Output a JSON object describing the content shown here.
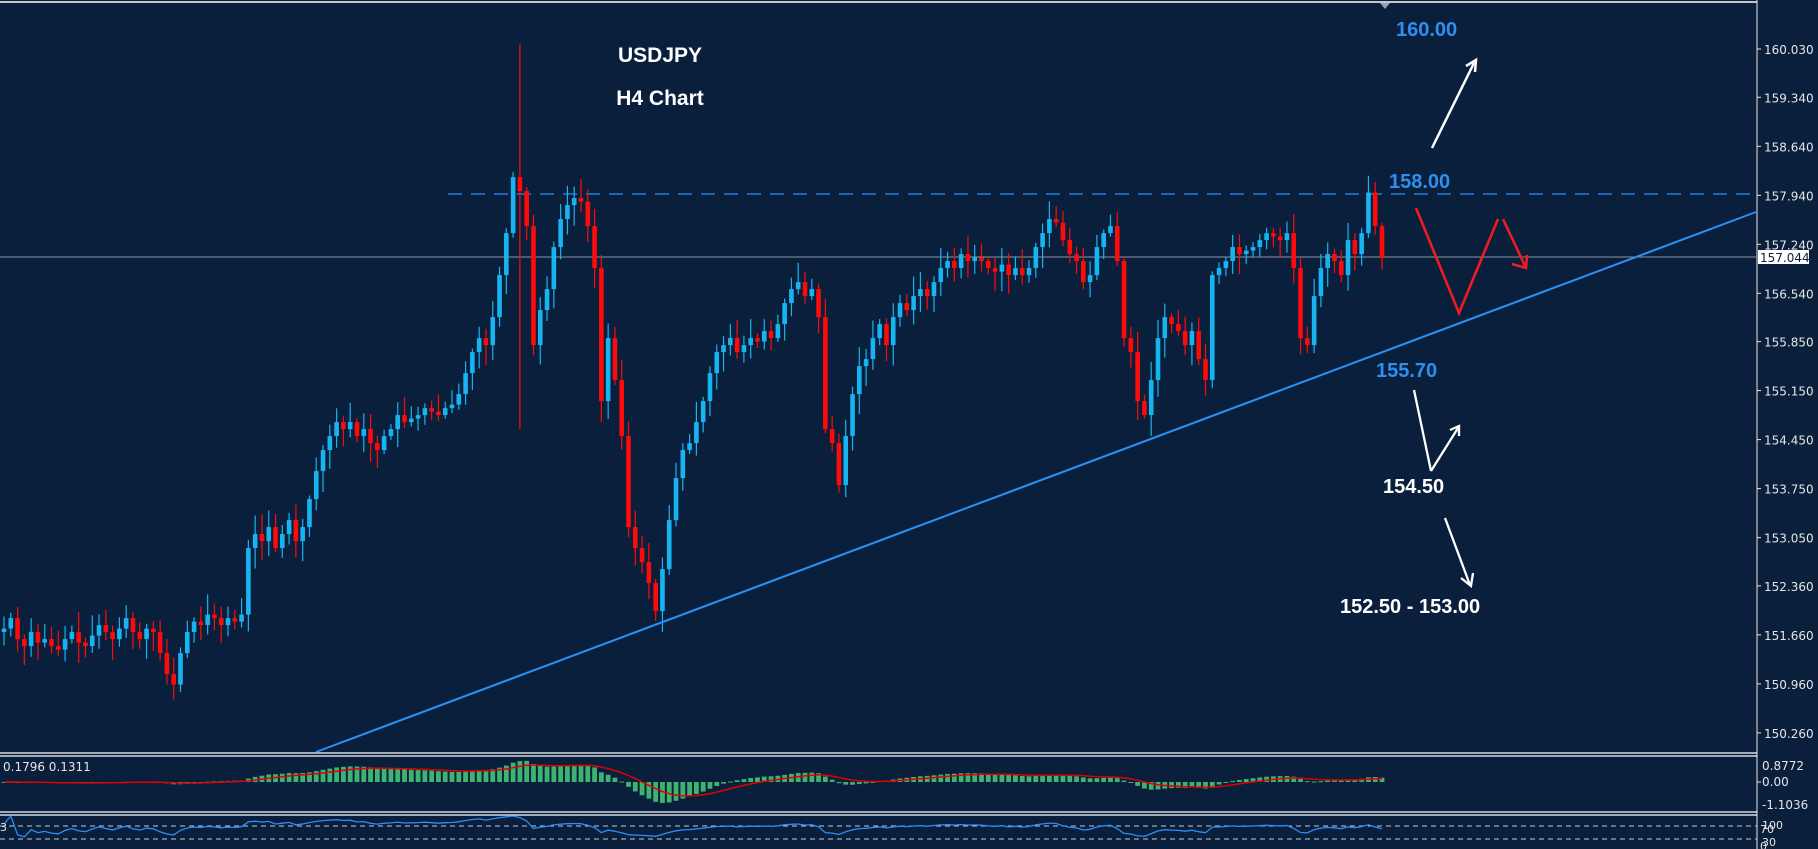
{
  "chart_data": [
    {
      "type": "candlestick",
      "title": "USDJPY",
      "subtitle": "H4 Chart",
      "symbol": "USDJPY",
      "timeframe": "H4",
      "ylim": [
        149.85,
        160.73
      ],
      "y_ticks": [
        160.03,
        159.34,
        158.64,
        157.94,
        157.24,
        156.54,
        155.85,
        155.15,
        154.45,
        153.75,
        153.05,
        152.36,
        151.66,
        150.96,
        150.26
      ],
      "y_tick_labels": [
        "160.030",
        "159.340",
        "158.640",
        "157.940",
        "157.240",
        "156.540",
        "155.850",
        "155.150",
        "154.450",
        "153.750",
        "153.050",
        "152.360",
        "151.660",
        "150.960",
        "150.260"
      ],
      "current_price": 157.044,
      "current_price_label": "157.044",
      "grid": false,
      "closes": [
        151.75,
        151.9,
        151.6,
        151.5,
        151.7,
        151.55,
        151.6,
        151.5,
        151.45,
        151.6,
        151.7,
        151.55,
        151.5,
        151.65,
        151.8,
        151.7,
        151.6,
        151.75,
        151.9,
        151.7,
        151.6,
        151.75,
        151.7,
        151.4,
        151.1,
        150.95,
        151.4,
        151.7,
        151.85,
        151.8,
        151.95,
        151.9,
        151.8,
        151.9,
        151.85,
        151.95,
        152.9,
        153.1,
        153.0,
        153.2,
        152.9,
        153.1,
        153.3,
        153.0,
        153.2,
        153.6,
        154.0,
        154.3,
        154.5,
        154.7,
        154.6,
        154.7,
        154.5,
        154.6,
        154.4,
        154.3,
        154.5,
        154.6,
        154.8,
        154.7,
        154.75,
        154.8,
        154.9,
        154.85,
        154.8,
        154.9,
        154.95,
        155.1,
        155.4,
        155.7,
        155.9,
        155.8,
        156.2,
        156.8,
        157.4,
        158.2,
        158.0,
        157.5,
        155.8,
        156.3,
        156.6,
        157.2,
        157.6,
        157.8,
        157.9,
        157.85,
        157.5,
        156.9,
        155.0,
        155.9,
        155.3,
        154.5,
        153.2,
        152.9,
        152.7,
        152.4,
        152.0,
        152.6,
        153.3,
        153.9,
        154.3,
        154.4,
        154.7,
        155.0,
        155.4,
        155.7,
        155.8,
        155.9,
        155.7,
        155.8,
        155.9,
        155.85,
        156.0,
        155.9,
        156.1,
        156.4,
        156.6,
        156.7,
        156.5,
        156.6,
        156.2,
        154.6,
        154.4,
        153.8,
        154.5,
        155.1,
        155.5,
        155.6,
        155.9,
        156.1,
        155.8,
        156.2,
        156.4,
        156.3,
        156.5,
        156.6,
        156.5,
        156.7,
        156.9,
        157.0,
        156.9,
        157.1,
        157.0,
        157.05,
        157.0,
        156.9,
        156.85,
        156.95,
        156.8,
        156.9,
        156.8,
        156.9,
        157.2,
        157.4,
        157.6,
        157.55,
        157.3,
        157.1,
        157.0,
        156.7,
        156.8,
        157.2,
        157.4,
        157.5,
        157.0,
        155.9,
        155.7,
        155.0,
        154.8,
        155.3,
        155.9,
        156.2,
        156.1,
        156.0,
        155.8,
        156.0,
        155.6,
        155.3,
        156.8,
        156.9,
        157.0,
        157.2,
        157.1,
        157.15,
        157.2,
        157.3,
        157.4,
        157.35,
        157.3,
        157.4,
        156.9,
        155.9,
        155.8,
        156.5,
        156.9,
        157.1,
        157.0,
        156.8,
        157.3,
        157.1,
        157.4,
        157.98,
        157.5,
        157.044
      ],
      "overlays": {
        "resistance_dashed_line": 157.94,
        "ascending_trendline": {
          "from_price": 150.0,
          "to_price": 157.65
        }
      },
      "annotations": [
        {
          "text": "160.00",
          "color": "#2f8ff0"
        },
        {
          "text": "158.00",
          "color": "#2f8ff0"
        },
        {
          "text": "155.70",
          "color": "#2f8ff0"
        },
        {
          "text": "154.50",
          "color": "#ffffff"
        },
        {
          "text": "152.50 - 153.00",
          "color": "#ffffff"
        }
      ]
    },
    {
      "type": "bar",
      "title": "MACD",
      "values_label": "0.1796 0.1311",
      "macd": 0.1796,
      "signal": 0.1311,
      "y_ticks": [
        0.8772,
        0.0,
        -1.1036
      ],
      "y_tick_labels": [
        "0.8772",
        "0.00",
        "-1.1036"
      ]
    },
    {
      "type": "line",
      "title": "RSI",
      "levels": [
        70,
        30
      ],
      "y_tick_labels": [
        "100",
        "70",
        "30",
        "0"
      ],
      "left_label": "3"
    }
  ],
  "colors": {
    "background": "#0a1f3c",
    "bull": "#18b4f0",
    "bear": "#ff0a0a",
    "trendline": "#2a8ff5",
    "resistance": "#2a8ff5",
    "macd_hist": "#3cb371",
    "macd_signal": "#e00000",
    "rsi_line": "#2a8ff5",
    "axis_text": "#e6e6e6"
  },
  "labels": {
    "title": "USDJPY",
    "subtitle": "H4 Chart",
    "a160": "160.00",
    "a158": "158.00",
    "a1557": "155.70",
    "a1545": "154.50",
    "a1525": "152.50 - 153.00",
    "current_price": "157.044",
    "macd_values": "0.1796 0.1311",
    "macd_hi": "0.8772",
    "macd_zero": "0.00",
    "macd_lo": "-1.1036",
    "rsi_100": "100",
    "rsi_70": "70",
    "rsi_30": "30",
    "rsi_0": "0",
    "rsi_left": "3"
  }
}
